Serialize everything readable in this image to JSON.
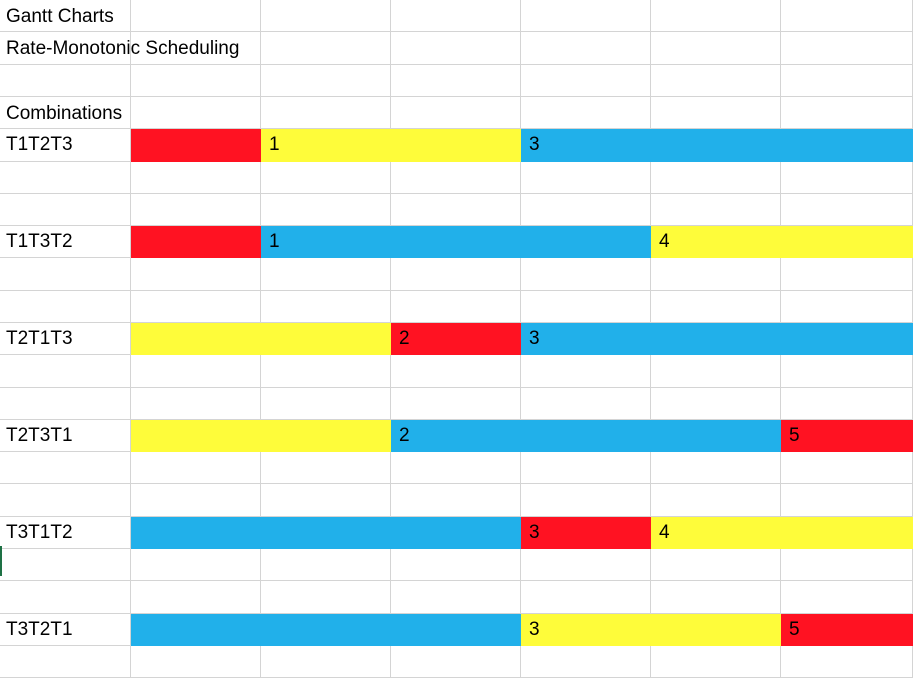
{
  "sheet": {
    "title": "Gantt Charts",
    "subtitle": "Rate-Monotonic Scheduling",
    "section_label": "Combinations"
  },
  "colors": {
    "red": "#ff1222",
    "yellow": "#fefc3a",
    "blue": "#21b0ea",
    "grid": "#d4d4d4"
  },
  "rows": [
    {
      "name": "T1T2T3",
      "segments": [
        {
          "start": 0,
          "end": 1,
          "color": "red",
          "label": ""
        },
        {
          "start": 1,
          "end": 3,
          "color": "yellow",
          "label": "1"
        },
        {
          "start": 3,
          "end": 6,
          "color": "blue",
          "label": "3"
        }
      ]
    },
    {
      "name": "T1T3T2",
      "segments": [
        {
          "start": 0,
          "end": 1,
          "color": "red",
          "label": ""
        },
        {
          "start": 1,
          "end": 4,
          "color": "blue",
          "label": "1"
        },
        {
          "start": 4,
          "end": 6,
          "color": "yellow",
          "label": "4"
        }
      ]
    },
    {
      "name": "T2T1T3",
      "segments": [
        {
          "start": 0,
          "end": 2,
          "color": "yellow",
          "label": ""
        },
        {
          "start": 2,
          "end": 3,
          "color": "red",
          "label": "2"
        },
        {
          "start": 3,
          "end": 6,
          "color": "blue",
          "label": "3"
        }
      ]
    },
    {
      "name": "T2T3T1",
      "segments": [
        {
          "start": 0,
          "end": 2,
          "color": "yellow",
          "label": ""
        },
        {
          "start": 2,
          "end": 5,
          "color": "blue",
          "label": "2"
        },
        {
          "start": 5,
          "end": 6,
          "color": "red",
          "label": "5"
        }
      ]
    },
    {
      "name": "T3T1T2",
      "segments": [
        {
          "start": 0,
          "end": 3,
          "color": "blue",
          "label": ""
        },
        {
          "start": 3,
          "end": 4,
          "color": "red",
          "label": "3"
        },
        {
          "start": 4,
          "end": 6,
          "color": "yellow",
          "label": "4"
        }
      ]
    },
    {
      "name": "T3T2T1",
      "segments": [
        {
          "start": 0,
          "end": 3,
          "color": "blue",
          "label": ""
        },
        {
          "start": 3,
          "end": 5,
          "color": "yellow",
          "label": "3"
        },
        {
          "start": 5,
          "end": 6,
          "color": "red",
          "label": "5"
        }
      ]
    }
  ]
}
